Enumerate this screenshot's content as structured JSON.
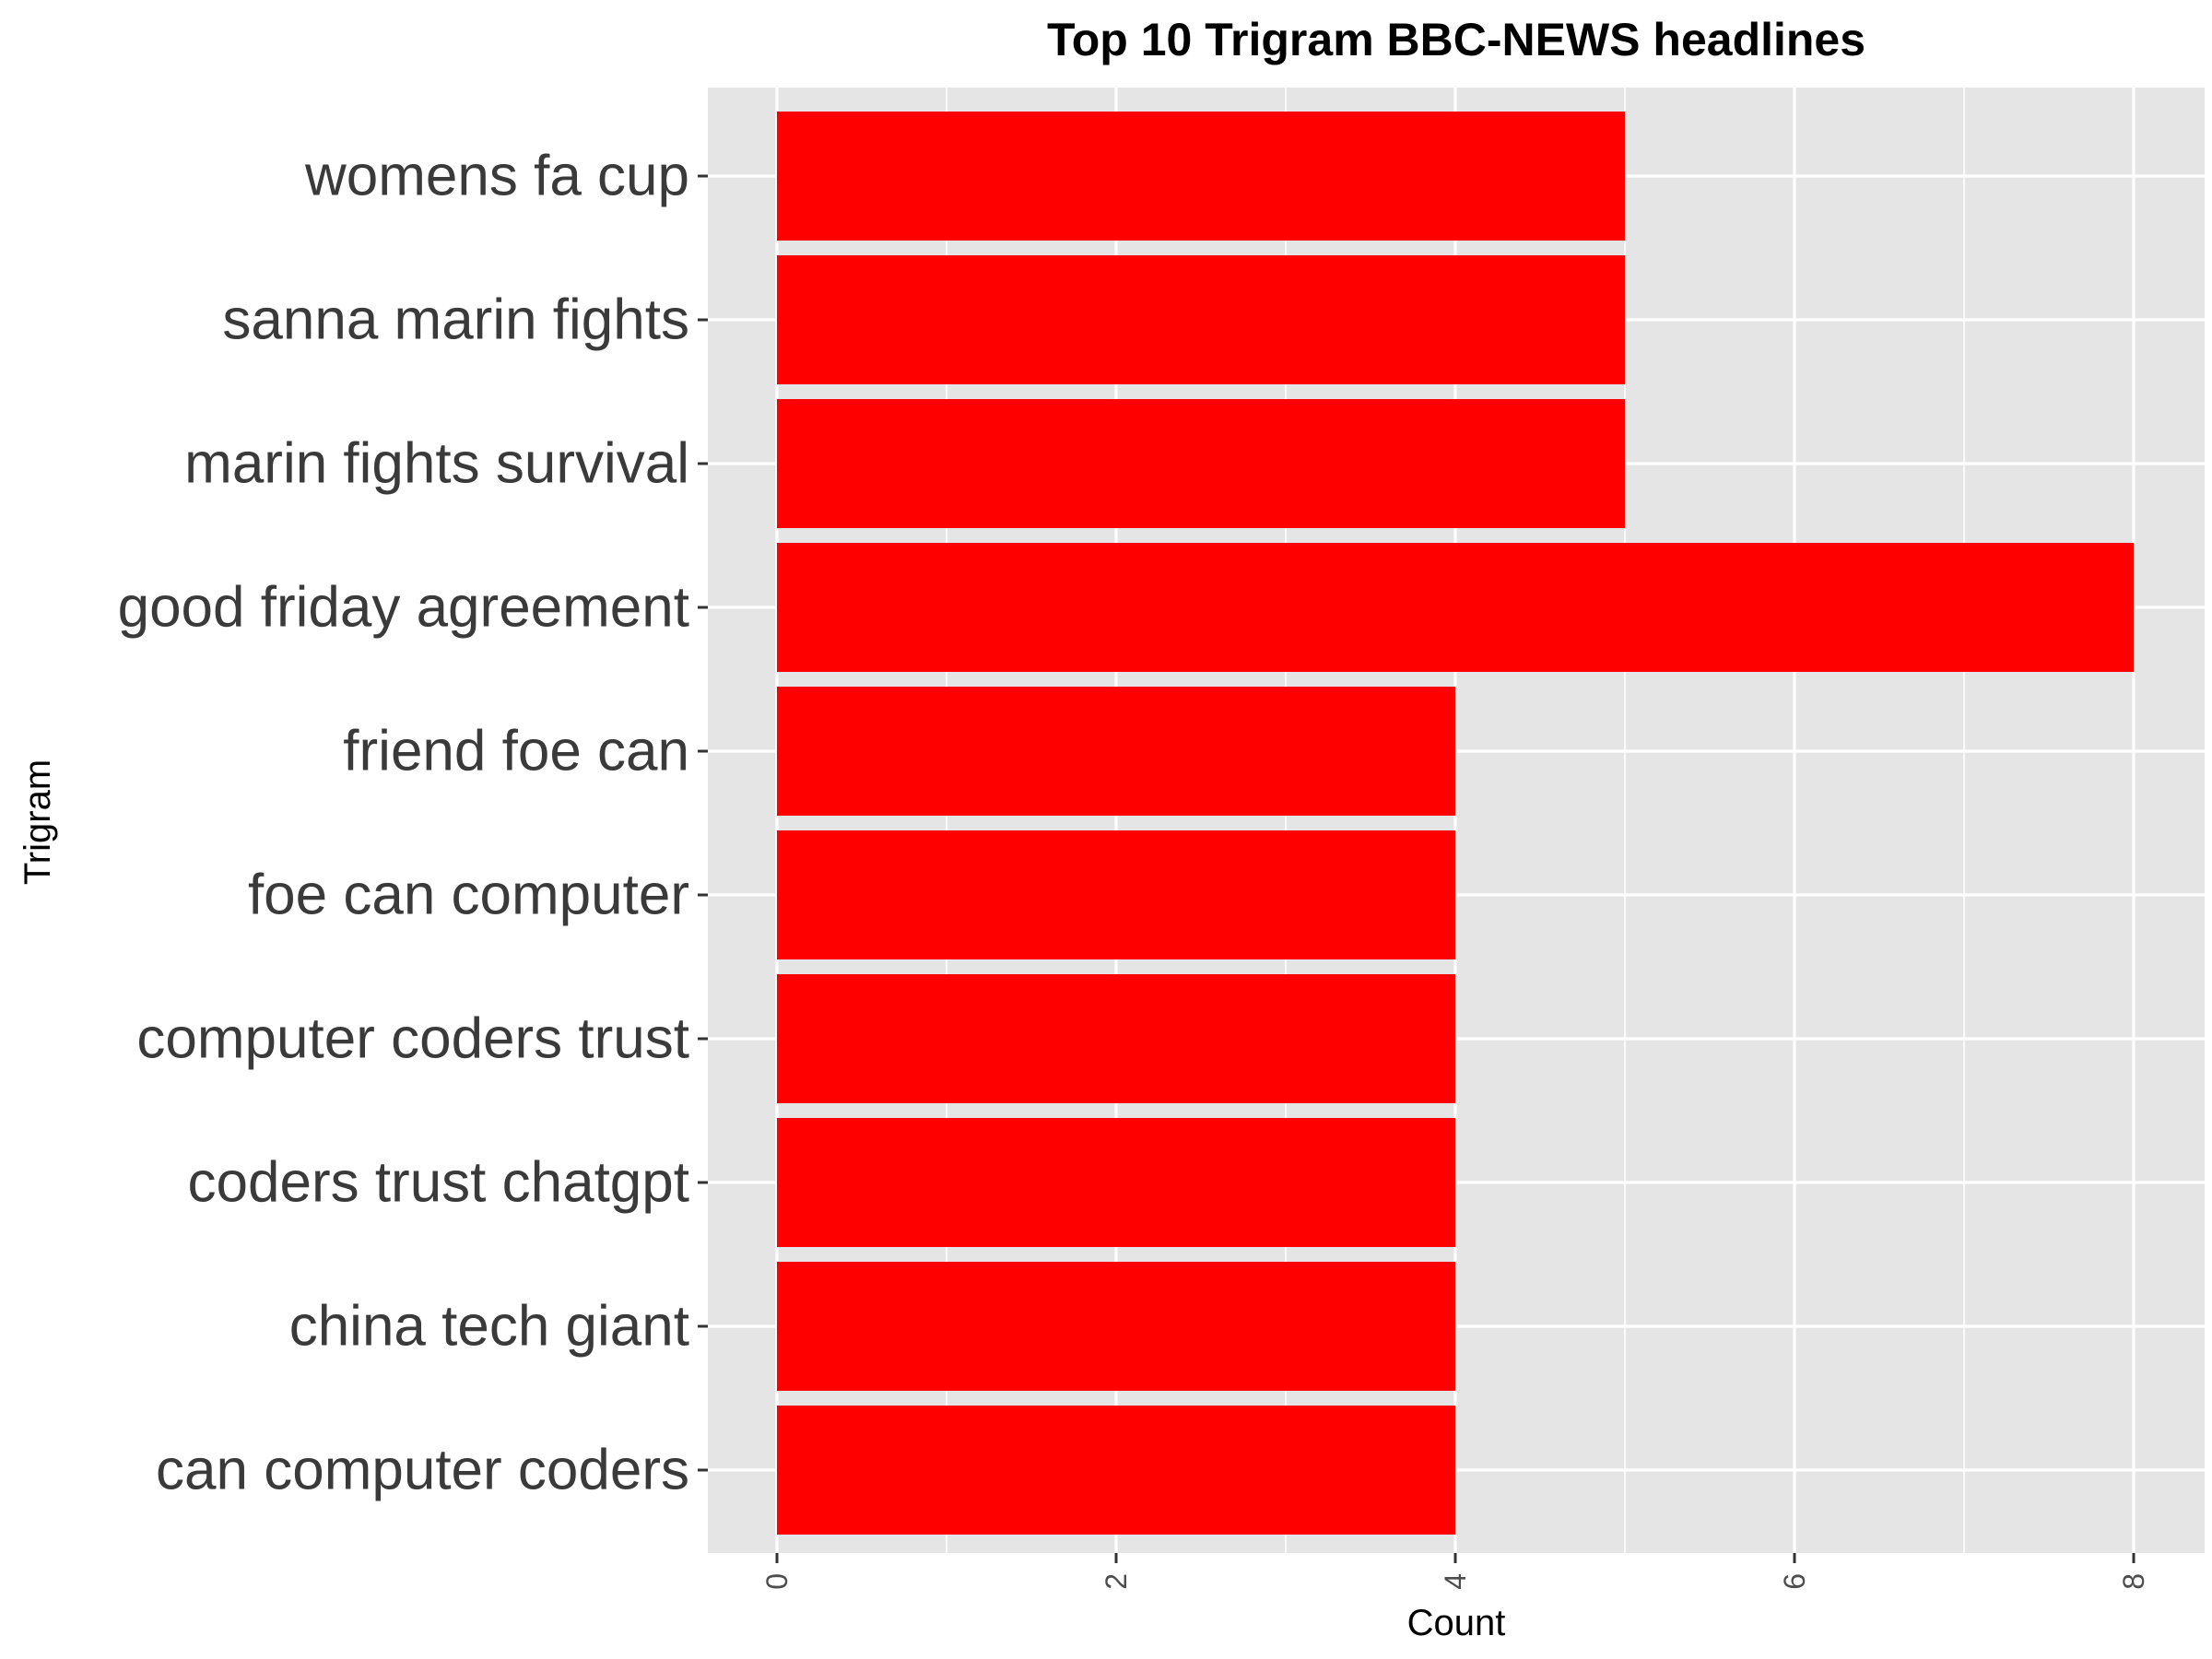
{
  "chart_data": {
    "type": "bar",
    "orientation": "horizontal",
    "title": "Top 10 Trigram BBC-NEWS headlines",
    "xlabel": "Count",
    "ylabel": "Trigram",
    "categories": [
      "womens fa cup",
      "sanna marin fights",
      "marin fights survival",
      "good friday agreement",
      "friend foe can",
      "foe can computer",
      "computer coders trust",
      "coders trust chatgpt",
      "china tech giant",
      "can computer coders"
    ],
    "values": [
      5,
      5,
      5,
      8,
      4,
      4,
      4,
      4,
      4,
      4
    ],
    "xlim": [
      0,
      8.4
    ],
    "x_ticks": [
      "0",
      "2",
      "4",
      "6",
      "8"
    ],
    "x_tick_values": [
      0,
      2,
      4,
      6,
      8
    ],
    "x_tick_label_rotation": "vertical",
    "grid": true,
    "bar_color": "#ff0000",
    "panel_background": "#e5e5e5",
    "grid_color": "#ffffff"
  }
}
